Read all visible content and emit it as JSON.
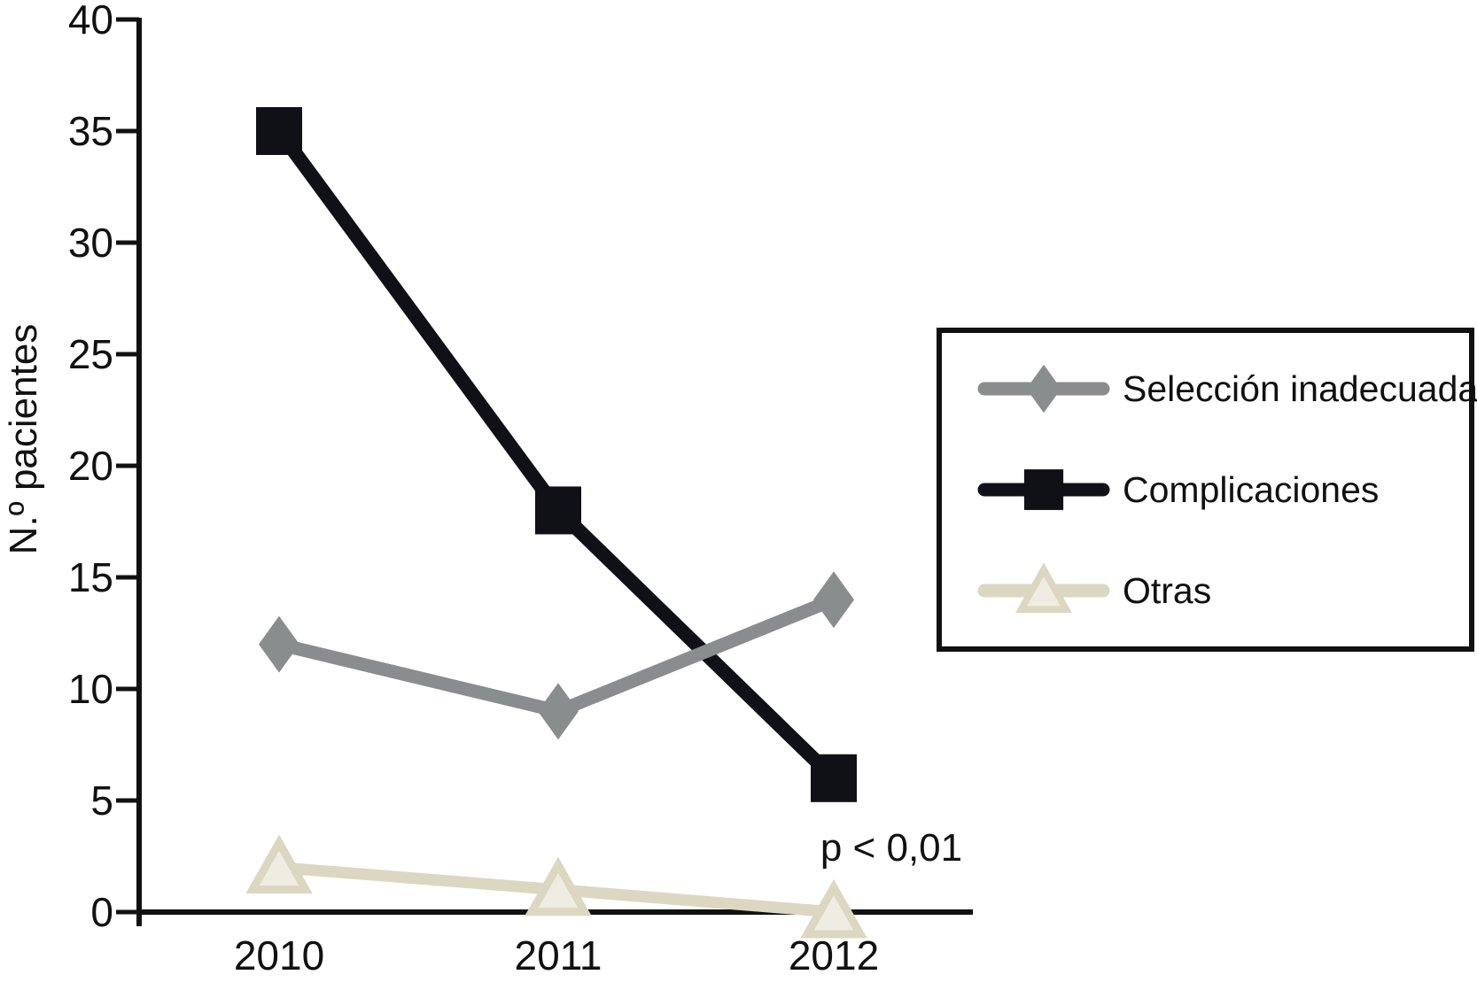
{
  "chart": {
    "background": "#ffffff",
    "axis_color": "#111111",
    "text_color": "#111111"
  },
  "chart_data": {
    "type": "line",
    "categories": [
      "2010",
      "2011",
      "2012"
    ],
    "series": [
      {
        "name": "Selección inadecuada",
        "marker": "diamond",
        "color": "#898d8e",
        "values": [
          12,
          9,
          14
        ]
      },
      {
        "name": "Complicaciones",
        "marker": "square",
        "color": "#0f1116",
        "values": [
          35,
          18,
          6
        ]
      },
      {
        "name": "Otras",
        "marker": "triangle",
        "color": "#dbd7c1",
        "marker_fill": "#efede1",
        "values": [
          2,
          1,
          0
        ]
      }
    ],
    "xlabel": "",
    "ylabel": "N.º pacientes",
    "ylim": [
      0,
      40
    ],
    "yticks": [
      0,
      5,
      10,
      15,
      20,
      25,
      30,
      35,
      40
    ],
    "grid": false,
    "legend_position": "right",
    "annotation": {
      "text": "p < 0,01",
      "near_category": "2012",
      "y_value": 2.7
    }
  }
}
